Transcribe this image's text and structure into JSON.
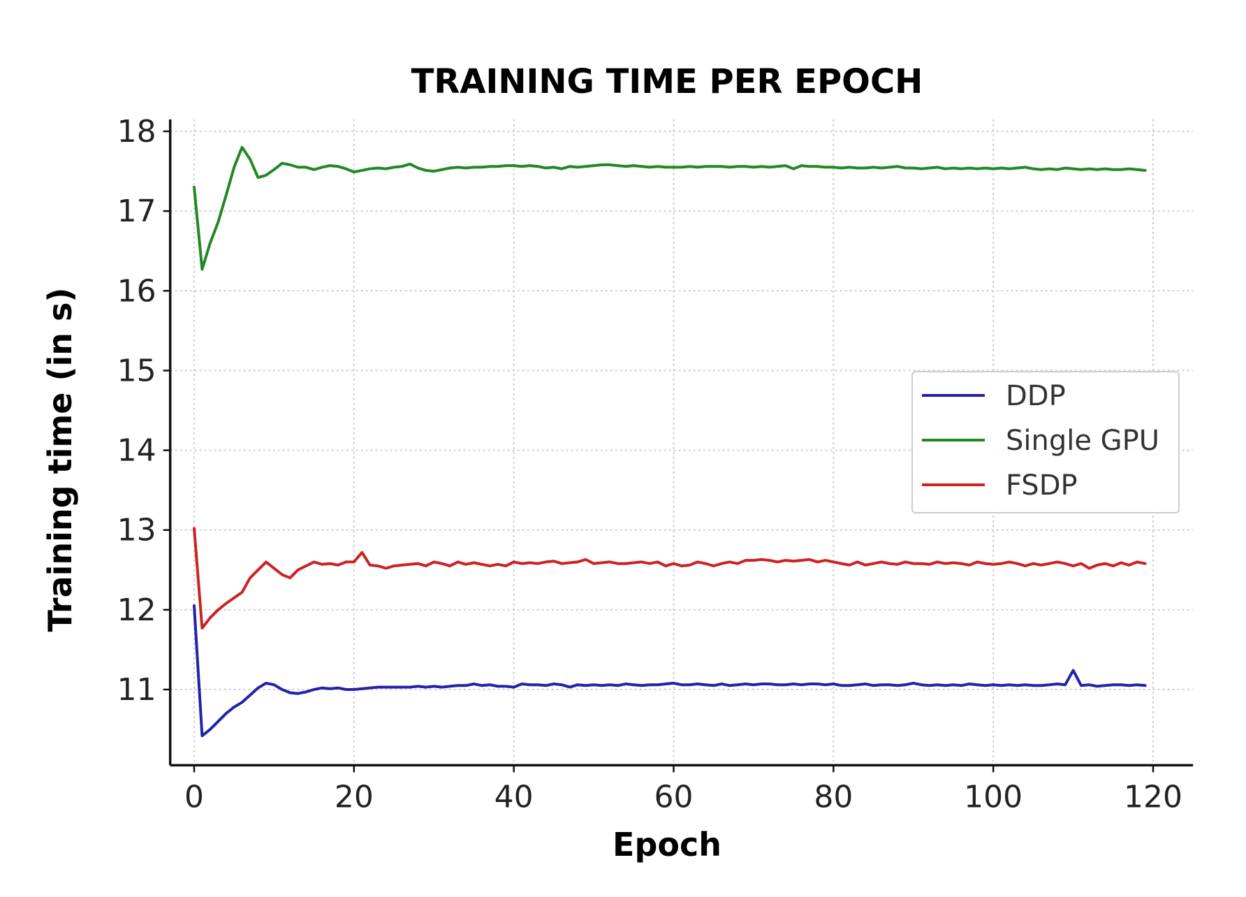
{
  "chart_data": {
    "type": "line",
    "title": "TRAINING TIME PER EPOCH",
    "xlabel": "Epoch",
    "ylabel": "Training time (in s)",
    "xlim": [
      -3,
      125
    ],
    "ylim": [
      10.05,
      18.15
    ],
    "xticks": [
      0,
      20,
      40,
      60,
      80,
      100,
      120
    ],
    "yticks": [
      11,
      12,
      13,
      14,
      15,
      16,
      17,
      18
    ],
    "grid": true,
    "legend_position": "center-right",
    "series": [
      {
        "name": "DDP",
        "color": "#2222aa",
        "x": [
          0,
          1,
          2,
          3,
          4,
          5,
          6,
          7,
          8,
          9,
          10,
          11,
          12,
          13,
          14,
          15,
          16,
          17,
          18,
          19,
          20,
          21,
          22,
          23,
          24,
          25,
          26,
          27,
          28,
          29,
          30,
          31,
          32,
          33,
          34,
          35,
          36,
          37,
          38,
          39,
          40,
          41,
          42,
          43,
          44,
          45,
          46,
          47,
          48,
          49,
          50,
          51,
          52,
          53,
          54,
          55,
          56,
          57,
          58,
          59,
          60,
          61,
          62,
          63,
          64,
          65,
          66,
          67,
          68,
          69,
          70,
          71,
          72,
          73,
          74,
          75,
          76,
          77,
          78,
          79,
          80,
          81,
          82,
          83,
          84,
          85,
          86,
          87,
          88,
          89,
          90,
          91,
          92,
          93,
          94,
          95,
          96,
          97,
          98,
          99,
          100,
          101,
          102,
          103,
          104,
          105,
          106,
          107,
          108,
          109,
          110,
          111,
          112,
          113,
          114,
          115,
          116,
          117,
          118,
          119
        ],
        "y": [
          12.05,
          10.42,
          10.5,
          10.6,
          10.7,
          10.78,
          10.84,
          10.93,
          11.02,
          11.08,
          11.06,
          11.0,
          10.96,
          10.95,
          10.97,
          11.0,
          11.02,
          11.01,
          11.02,
          11.0,
          11.0,
          11.01,
          11.02,
          11.03,
          11.03,
          11.03,
          11.03,
          11.03,
          11.04,
          11.03,
          11.04,
          11.03,
          11.04,
          11.05,
          11.05,
          11.07,
          11.05,
          11.06,
          11.04,
          11.04,
          11.03,
          11.07,
          11.06,
          11.06,
          11.05,
          11.07,
          11.06,
          11.03,
          11.06,
          11.05,
          11.06,
          11.05,
          11.06,
          11.05,
          11.07,
          11.06,
          11.05,
          11.06,
          11.06,
          11.07,
          11.08,
          11.06,
          11.06,
          11.07,
          11.06,
          11.05,
          11.07,
          11.05,
          11.06,
          11.07,
          11.06,
          11.07,
          11.07,
          11.06,
          11.06,
          11.07,
          11.06,
          11.07,
          11.07,
          11.06,
          11.07,
          11.05,
          11.05,
          11.06,
          11.07,
          11.05,
          11.06,
          11.06,
          11.05,
          11.06,
          11.08,
          11.06,
          11.05,
          11.06,
          11.05,
          11.06,
          11.05,
          11.07,
          11.06,
          11.05,
          11.06,
          11.05,
          11.06,
          11.05,
          11.06,
          11.05,
          11.05,
          11.06,
          11.07,
          11.06,
          11.24,
          11.05,
          11.06,
          11.04,
          11.05,
          11.06,
          11.06,
          11.05,
          11.06,
          11.05
        ]
      },
      {
        "name": "Single GPU",
        "color": "#228822",
        "x": [
          0,
          1,
          2,
          3,
          4,
          5,
          6,
          7,
          8,
          9,
          10,
          11,
          12,
          13,
          14,
          15,
          16,
          17,
          18,
          19,
          20,
          21,
          22,
          23,
          24,
          25,
          26,
          27,
          28,
          29,
          30,
          31,
          32,
          33,
          34,
          35,
          36,
          37,
          38,
          39,
          40,
          41,
          42,
          43,
          44,
          45,
          46,
          47,
          48,
          49,
          50,
          51,
          52,
          53,
          54,
          55,
          56,
          57,
          58,
          59,
          60,
          61,
          62,
          63,
          64,
          65,
          66,
          67,
          68,
          69,
          70,
          71,
          72,
          73,
          74,
          75,
          76,
          77,
          78,
          79,
          80,
          81,
          82,
          83,
          84,
          85,
          86,
          87,
          88,
          89,
          90,
          91,
          92,
          93,
          94,
          95,
          96,
          97,
          98,
          99,
          100,
          101,
          102,
          103,
          104,
          105,
          106,
          107,
          108,
          109,
          110,
          111,
          112,
          113,
          114,
          115,
          116,
          117,
          118,
          119
        ],
        "y": [
          17.3,
          16.27,
          16.6,
          16.86,
          17.2,
          17.55,
          17.8,
          17.65,
          17.42,
          17.45,
          17.52,
          17.6,
          17.58,
          17.55,
          17.55,
          17.52,
          17.55,
          17.57,
          17.56,
          17.53,
          17.49,
          17.51,
          17.53,
          17.54,
          17.53,
          17.55,
          17.56,
          17.59,
          17.54,
          17.51,
          17.5,
          17.52,
          17.54,
          17.55,
          17.54,
          17.55,
          17.55,
          17.56,
          17.56,
          17.57,
          17.57,
          17.56,
          17.57,
          17.56,
          17.54,
          17.55,
          17.53,
          17.56,
          17.55,
          17.56,
          17.57,
          17.58,
          17.58,
          17.57,
          17.56,
          17.57,
          17.56,
          17.55,
          17.56,
          17.55,
          17.55,
          17.55,
          17.56,
          17.55,
          17.56,
          17.56,
          17.56,
          17.55,
          17.56,
          17.56,
          17.55,
          17.56,
          17.55,
          17.56,
          17.57,
          17.53,
          17.57,
          17.56,
          17.56,
          17.55,
          17.55,
          17.54,
          17.55,
          17.54,
          17.54,
          17.55,
          17.54,
          17.55,
          17.56,
          17.54,
          17.54,
          17.53,
          17.54,
          17.55,
          17.53,
          17.54,
          17.53,
          17.54,
          17.53,
          17.54,
          17.53,
          17.54,
          17.53,
          17.54,
          17.55,
          17.53,
          17.52,
          17.53,
          17.52,
          17.54,
          17.53,
          17.52,
          17.53,
          17.52,
          17.53,
          17.52,
          17.52,
          17.53,
          17.52,
          17.51
        ]
      },
      {
        "name": "FSDP",
        "color": "#cc2222",
        "x": [
          0,
          1,
          2,
          3,
          4,
          5,
          6,
          7,
          8,
          9,
          10,
          11,
          12,
          13,
          14,
          15,
          16,
          17,
          18,
          19,
          20,
          21,
          22,
          23,
          24,
          25,
          26,
          27,
          28,
          29,
          30,
          31,
          32,
          33,
          34,
          35,
          36,
          37,
          38,
          39,
          40,
          41,
          42,
          43,
          44,
          45,
          46,
          47,
          48,
          49,
          50,
          51,
          52,
          53,
          54,
          55,
          56,
          57,
          58,
          59,
          60,
          61,
          62,
          63,
          64,
          65,
          66,
          67,
          68,
          69,
          70,
          71,
          72,
          73,
          74,
          75,
          76,
          77,
          78,
          79,
          80,
          81,
          82,
          83,
          84,
          85,
          86,
          87,
          88,
          89,
          90,
          91,
          92,
          93,
          94,
          95,
          96,
          97,
          98,
          99,
          100,
          101,
          102,
          103,
          104,
          105,
          106,
          107,
          108,
          109,
          110,
          111,
          112,
          113,
          114,
          115,
          116,
          117,
          118,
          119
        ],
        "y": [
          13.02,
          11.77,
          11.9,
          12.0,
          12.08,
          12.15,
          12.22,
          12.4,
          12.5,
          12.6,
          12.52,
          12.44,
          12.4,
          12.5,
          12.55,
          12.6,
          12.57,
          12.58,
          12.56,
          12.6,
          12.6,
          12.72,
          12.56,
          12.55,
          12.52,
          12.55,
          12.56,
          12.57,
          12.58,
          12.55,
          12.6,
          12.58,
          12.55,
          12.6,
          12.57,
          12.59,
          12.57,
          12.55,
          12.57,
          12.55,
          12.6,
          12.58,
          12.59,
          12.58,
          12.6,
          12.61,
          12.58,
          12.59,
          12.6,
          12.63,
          12.58,
          12.59,
          12.6,
          12.58,
          12.58,
          12.59,
          12.6,
          12.58,
          12.6,
          12.55,
          12.58,
          12.55,
          12.56,
          12.6,
          12.58,
          12.55,
          12.58,
          12.6,
          12.58,
          12.62,
          12.62,
          12.63,
          12.62,
          12.6,
          12.62,
          12.61,
          12.62,
          12.63,
          12.6,
          12.62,
          12.6,
          12.58,
          12.56,
          12.6,
          12.56,
          12.58,
          12.6,
          12.58,
          12.57,
          12.6,
          12.58,
          12.58,
          12.57,
          12.6,
          12.58,
          12.59,
          12.58,
          12.56,
          12.6,
          12.58,
          12.57,
          12.58,
          12.6,
          12.58,
          12.55,
          12.58,
          12.56,
          12.58,
          12.6,
          12.58,
          12.55,
          12.58,
          12.52,
          12.56,
          12.58,
          12.55,
          12.59,
          12.56,
          12.6,
          12.58
        ]
      }
    ]
  }
}
